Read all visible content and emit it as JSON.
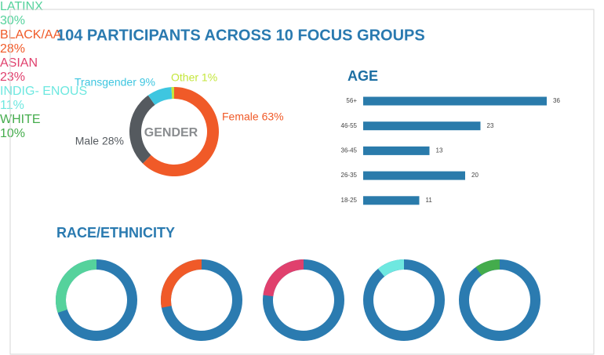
{
  "title": "104 PARTICIPANTS ACROSS 10 FOCUS GROUPS",
  "chart_data": [
    {
      "type": "donut",
      "title": "GENDER",
      "values": [
        63,
        28,
        9,
        1
      ],
      "value_labels": [
        "Female 63%",
        "Male 28%",
        "Transgender 9%",
        "Other 1%"
      ],
      "colors": [
        "#f05a28",
        "#555a5f",
        "#3ec6e0",
        "#c4e63c"
      ]
    },
    {
      "type": "bar",
      "orientation": "horizontal",
      "title": "AGE",
      "categories": [
        "56+",
        "46-55",
        "36-45",
        "26-35",
        "18-25"
      ],
      "values": [
        36,
        23,
        13,
        20,
        11
      ],
      "color": "#2a7bab"
    },
    {
      "type": "donut-set",
      "title": "RACE/ETHNICITY",
      "categories": [
        "LATINX",
        "BLACK/AA",
        "ASIAN",
        "INDIG-\nENOUS",
        "WHITE"
      ],
      "values": [
        30,
        28,
        23,
        11,
        10
      ],
      "value_labels": [
        "30%",
        "28%",
        "23%",
        "11%",
        "10%"
      ],
      "colors": [
        "#55d29c",
        "#f05a28",
        "#e0406d",
        "#6ee8e0",
        "#44ac4c"
      ],
      "base_color": "#2b7bb0"
    }
  ]
}
